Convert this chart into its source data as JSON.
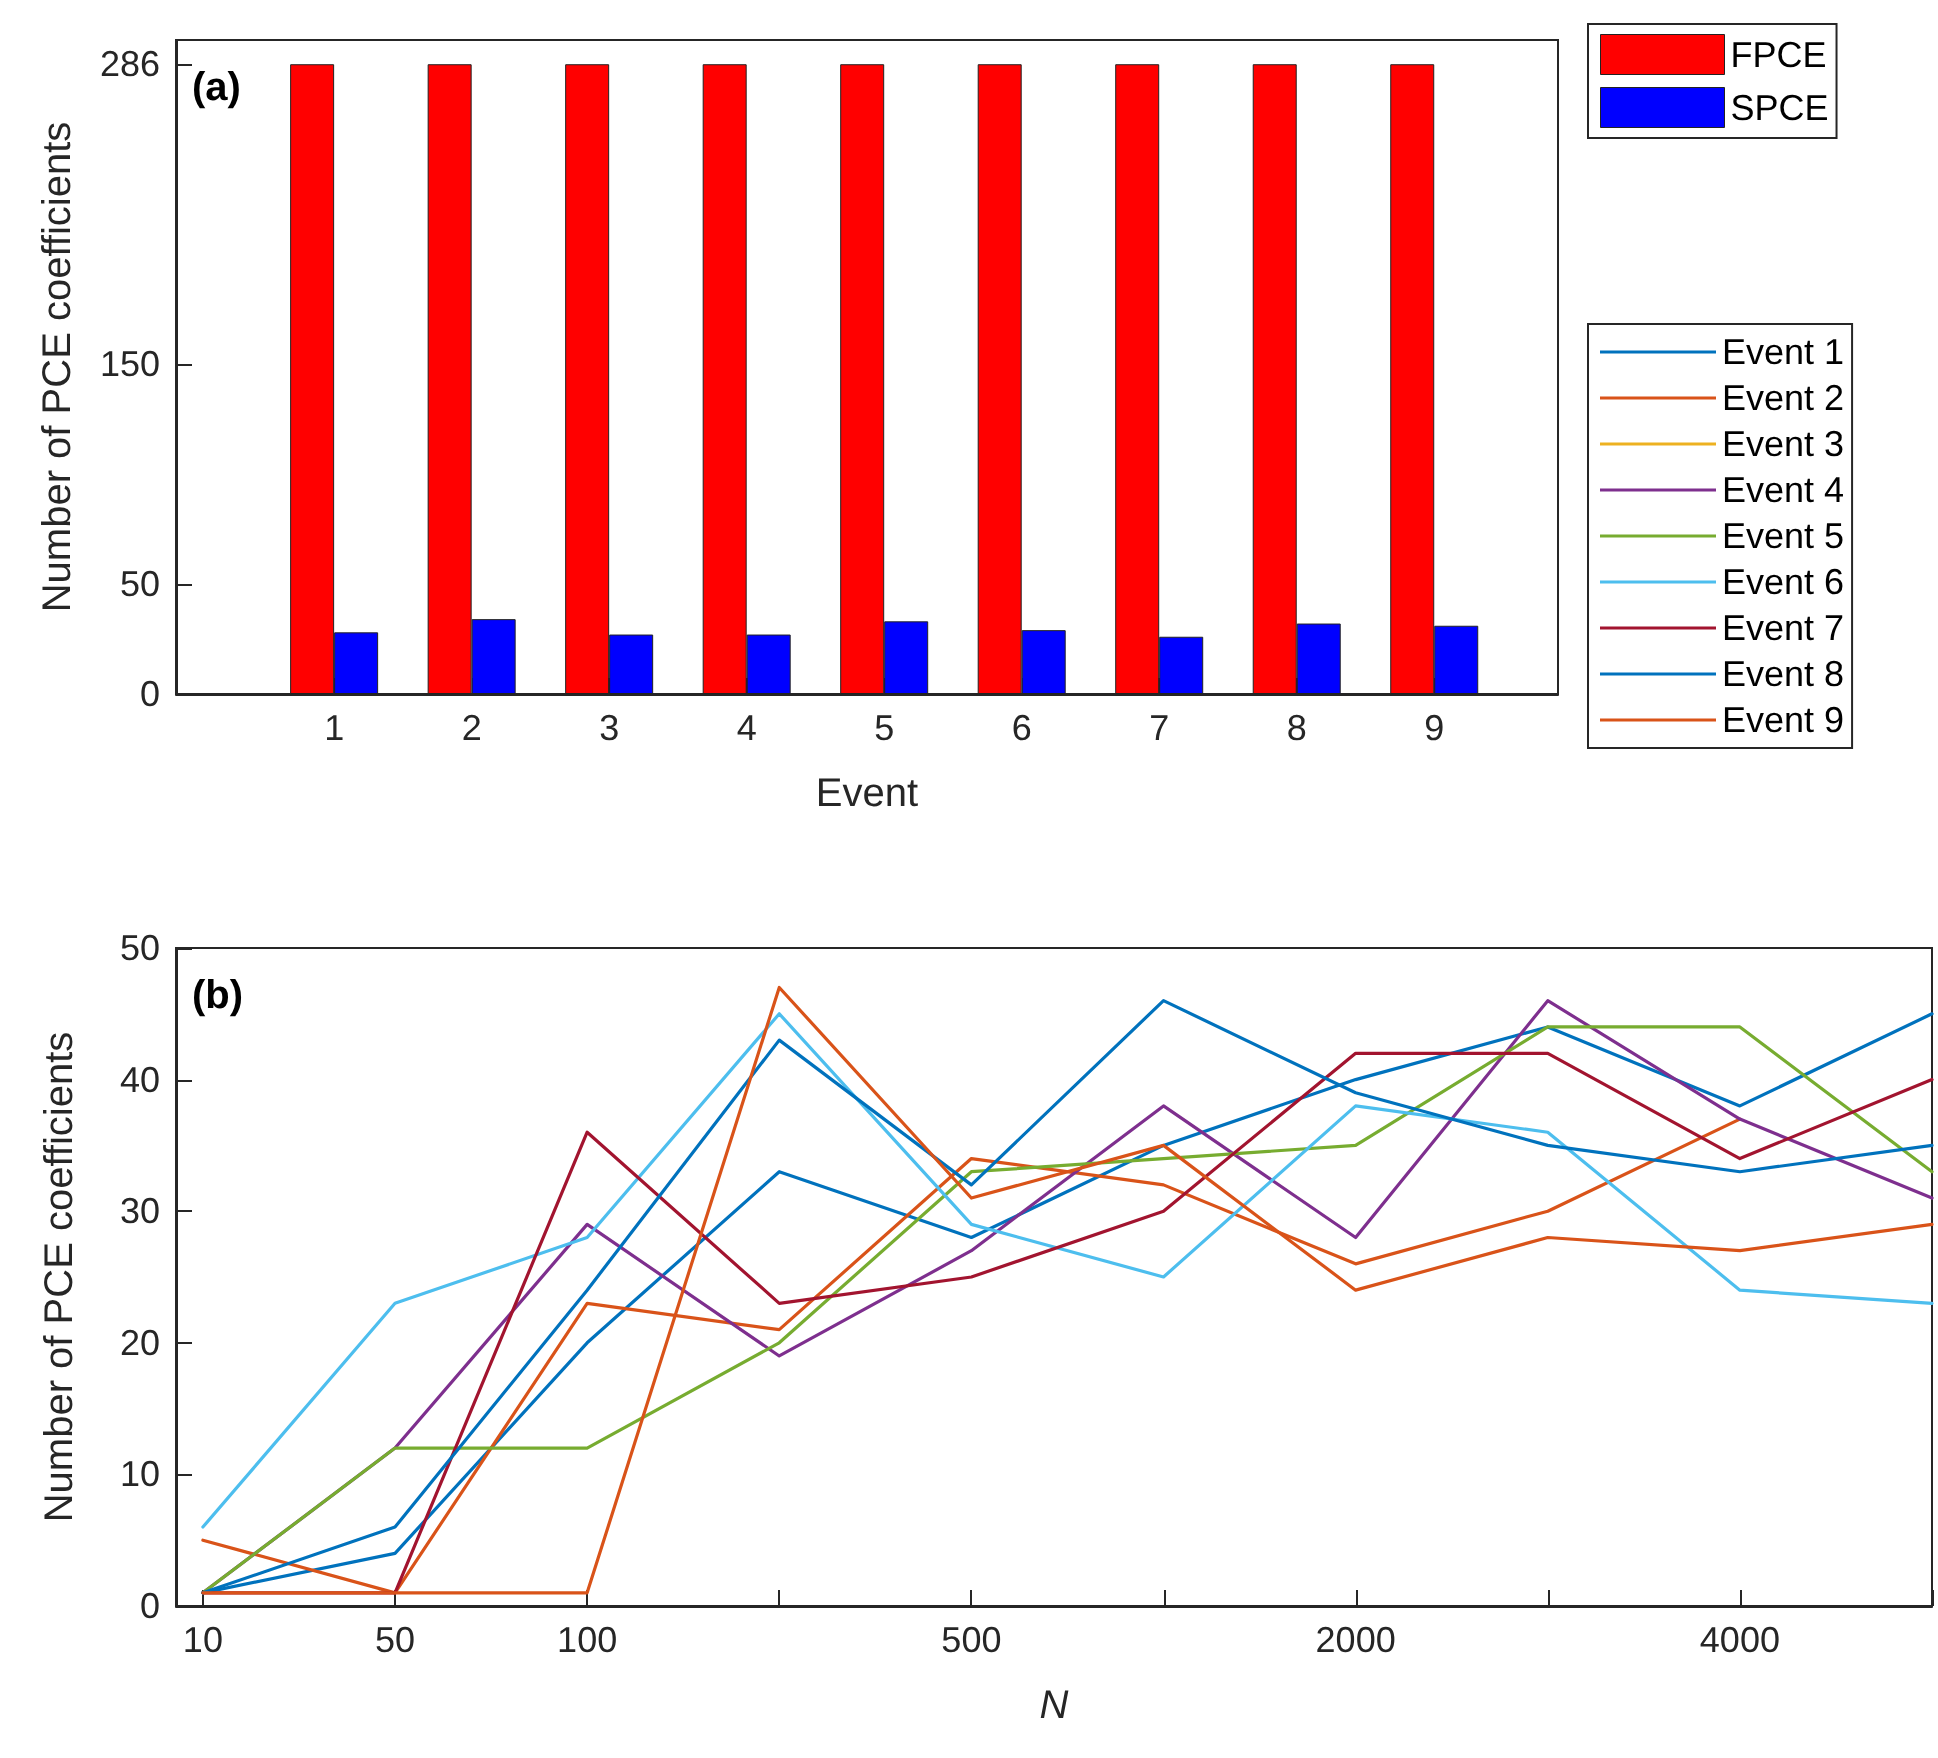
{
  "chart_data": [
    {
      "type": "bar",
      "xlabel": "Event",
      "ylabel": "Number of PCE coefficients",
      "annotations": [
        "(a)"
      ],
      "categories": [
        "1",
        "2",
        "3",
        "4",
        "5",
        "6",
        "7",
        "8",
        "9"
      ],
      "series": [
        {
          "name": "FPCE",
          "color": "#ff0000",
          "values": [
            286,
            286,
            286,
            286,
            286,
            286,
            286,
            286,
            286
          ]
        },
        {
          "name": "SPCE",
          "color": "#0000ff",
          "values": [
            28,
            34,
            27,
            27,
            33,
            29,
            26,
            32,
            31
          ]
        }
      ],
      "ylim": [
        0,
        297
      ],
      "yticks": [
        0,
        50,
        150,
        286
      ],
      "grid": false,
      "legend": "top right"
    },
    {
      "type": "line",
      "xlabel": "N",
      "ylabel": "Number of PCE coefficients",
      "annotations": [
        "(b)"
      ],
      "categories": [
        "10",
        "50",
        "100",
        null,
        "500",
        null,
        "2000",
        null,
        "4000",
        null
      ],
      "series": [
        {
          "name": "Event 1",
          "color": "#0072bd",
          "values": [
            1,
            4,
            20,
            33,
            28,
            35,
            40,
            44,
            38,
            45
          ]
        },
        {
          "name": "Event 2",
          "color": "#d95319",
          "values": [
            5,
            1,
            23,
            21,
            34,
            32,
            26,
            30,
            37,
            null
          ]
        },
        {
          "name": "Event 3",
          "color": "#edb120",
          "values": [
            null,
            null,
            null,
            null,
            null,
            null,
            null,
            null,
            null,
            null
          ]
        },
        {
          "name": "Event 4",
          "color": "#7e2f8e",
          "values": [
            1,
            12,
            29,
            19,
            27,
            38,
            28,
            46,
            37,
            31
          ]
        },
        {
          "name": "Event 5",
          "color": "#77ac30",
          "values": [
            1,
            12,
            12,
            20,
            33,
            34,
            35,
            44,
            44,
            33
          ]
        },
        {
          "name": "Event 6",
          "color": "#4dbeee",
          "values": [
            6,
            23,
            28,
            45,
            29,
            25,
            38,
            36,
            24,
            23
          ]
        },
        {
          "name": "Event 7",
          "color": "#a2142f",
          "values": [
            1,
            1,
            36,
            23,
            25,
            30,
            42,
            42,
            34,
            40
          ]
        },
        {
          "name": "Event 8",
          "color": "#0072bd",
          "values": [
            1,
            6,
            24,
            43,
            32,
            46,
            39,
            35,
            33,
            35
          ]
        },
        {
          "name": "Event 9",
          "color": "#d95319",
          "values": [
            1,
            1,
            1,
            47,
            31,
            35,
            24,
            28,
            27,
            29
          ]
        }
      ],
      "ylim": [
        0,
        50
      ],
      "yticks": [
        0,
        10,
        20,
        30,
        40,
        50
      ],
      "grid": false,
      "marker": "none",
      "line_style": "solid",
      "legend": "top right"
    }
  ]
}
